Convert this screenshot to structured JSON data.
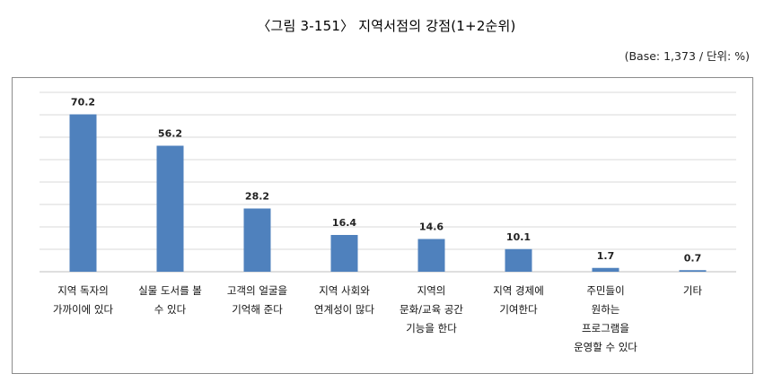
{
  "header": {
    "title": "〈그림 3-151〉 지역서점의 강점(1+2순위)",
    "base_note": "(Base:  1,373  /  단위:  %)"
  },
  "colors": {
    "bar": "#4f81bd",
    "grid": "#d9d9d9",
    "frame": "#8c8c8c"
  },
  "chart_data": {
    "type": "bar",
    "title": "〈그림 3-151〉 지역서점의 강점(1+2순위)",
    "categories": [
      "지역 독자의\n가까이에 있다",
      "실물 도서를 볼\n수 있다",
      "고객의 얼굴을\n기억해 준다",
      "지역 사회와\n연계성이 많다",
      "지역의\n문화/교육 공간\n기능을 한다",
      "지역 경제에\n기여한다",
      "주민들이\n원하는\n프로그램을\n운영할 수 있다",
      "기타"
    ],
    "values": [
      70.2,
      56.2,
      28.2,
      16.4,
      14.6,
      10.1,
      1.7,
      0.7
    ],
    "value_labels": [
      "70.2",
      "56.2",
      "28.2",
      "16.4",
      "14.6",
      "10.1",
      "1.7",
      "0.7"
    ],
    "xlabel": "",
    "ylabel": "",
    "ylim": [
      0,
      80
    ],
    "grid": true,
    "legend": "none"
  }
}
